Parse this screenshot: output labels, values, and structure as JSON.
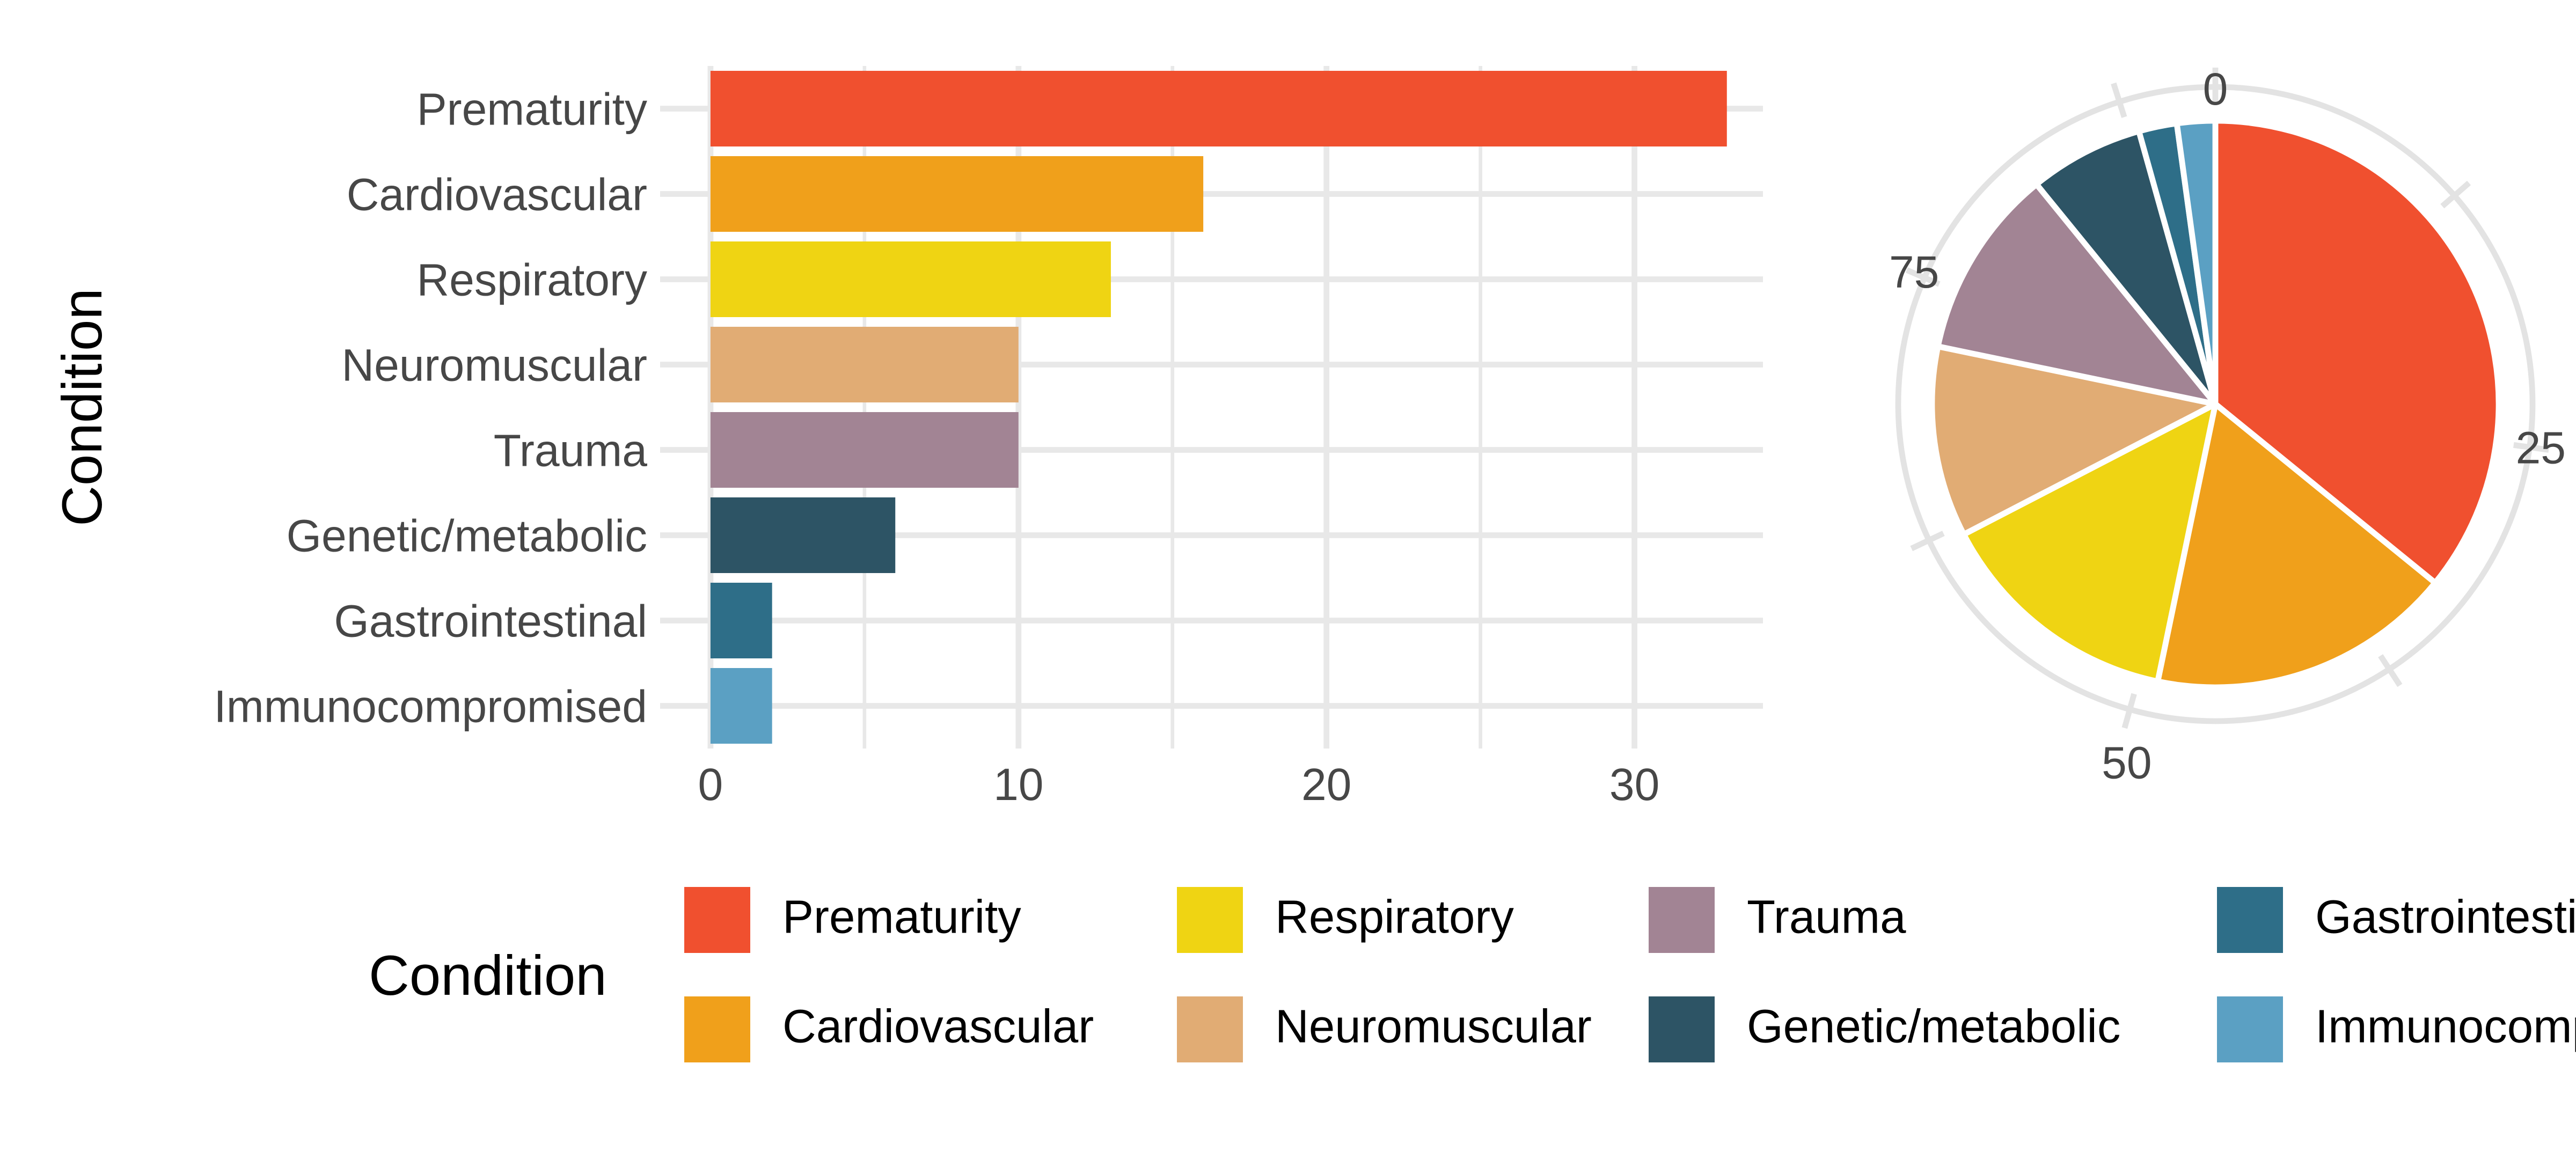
{
  "page": {
    "background": "#ffffff"
  },
  "bar_chart": {
    "y_axis_title": "Condition"
  },
  "legend": {
    "title": "Condition",
    "items": [
      {
        "label": "Prematurity",
        "color": "#F0502F"
      },
      {
        "label": "Cardiovascular",
        "color": "#F0A01B"
      },
      {
        "label": "Respiratory",
        "color": "#EFD413"
      },
      {
        "label": "Neuromuscular",
        "color": "#E1AC74"
      },
      {
        "label": "Trauma",
        "color": "#A28494"
      },
      {
        "label": "Genetic/metabolic",
        "color": "#2D5465"
      },
      {
        "label": "Gastrointestinal",
        "color": "#2E6E88"
      },
      {
        "label": "Immunocompromised",
        "color": "#5BA0C3"
      }
    ]
  },
  "chart_data": [
    {
      "type": "bar",
      "orientation": "horizontal",
      "title": "",
      "categories": [
        "Prematurity",
        "Cardiovascular",
        "Respiratory",
        "Neuromuscular",
        "Trauma",
        "Genetic/metabolic",
        "Gastrointestinal",
        "Immunocompromised"
      ],
      "values": [
        33,
        16,
        13,
        10,
        10,
        6,
        2,
        2
      ],
      "colors": [
        "#F0502F",
        "#F0A01B",
        "#EFD413",
        "#E1AC74",
        "#A28494",
        "#2D5465",
        "#2E6E88",
        "#5BA0C3"
      ],
      "xlabel": "",
      "ylabel": "Condition",
      "xlim": [
        -1.65,
        34.65
      ],
      "x_major_ticks": [
        0,
        10,
        20,
        30
      ],
      "x_minor_ticks": [
        5,
        15,
        25
      ],
      "grid": true,
      "grid_color": "#E8E8E8",
      "axis_text_color": "#474747"
    },
    {
      "type": "pie",
      "categories": [
        "Prematurity",
        "Cardiovascular",
        "Respiratory",
        "Neuromuscular",
        "Trauma",
        "Genetic/metabolic",
        "Gastrointestinal",
        "Immunocompromised"
      ],
      "values": [
        33,
        16,
        13,
        10,
        10,
        6,
        2,
        2
      ],
      "colors": [
        "#F0502F",
        "#F0A01B",
        "#EFD413",
        "#E1AC74",
        "#A28494",
        "#2D5465",
        "#2E6E88",
        "#5BA0C3"
      ],
      "total": 92,
      "start_angle_deg": 0,
      "direction": "clockwise",
      "axis_tick_values": [
        0,
        25,
        50,
        75
      ],
      "axis_minor_tick_values": [
        12.5,
        37.5,
        62.5,
        87.5
      ],
      "ring_color": "#E3E3E3",
      "slice_border_color": "#FFFFFF",
      "axis_text_color": "#474747"
    }
  ]
}
